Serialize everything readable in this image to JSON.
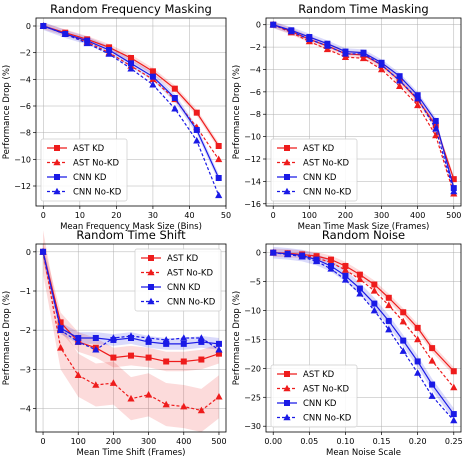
{
  "chart_data": [
    {
      "type": "line",
      "title": "Random Frequency Masking",
      "xlabel": "Mean Frequency Mask Size (Bins)",
      "ylabel": "Performance Drop (%)",
      "xlim": [
        -2,
        50
      ],
      "ylim": [
        -13.5,
        0.6
      ],
      "xticks": [
        0,
        10,
        20,
        30,
        40,
        50
      ],
      "yticks": [
        0,
        -2,
        -4,
        -6,
        -8,
        -10,
        -12
      ],
      "grid": true,
      "legend_position": "lower-left",
      "series": [
        {
          "name": "AST KD",
          "color": "#ee1c1c",
          "marker": "square",
          "dashed": false,
          "x": [
            0,
            6,
            12,
            18,
            24,
            30,
            36,
            42,
            48
          ],
          "y": [
            0,
            -0.5,
            -1.0,
            -1.6,
            -2.4,
            -3.4,
            -4.7,
            -6.5,
            -9.0
          ],
          "band": 0.25
        },
        {
          "name": "AST No-KD",
          "color": "#ee1c1c",
          "marker": "triangle",
          "dashed": true,
          "x": [
            0,
            6,
            12,
            18,
            24,
            30,
            36,
            42,
            48
          ],
          "y": [
            0,
            -0.6,
            -1.2,
            -2.0,
            -3.0,
            -4.0,
            -5.5,
            -7.6,
            -10.0
          ],
          "band": 0
        },
        {
          "name": "CNN KD",
          "color": "#1a1ae6",
          "marker": "square",
          "dashed": false,
          "x": [
            0,
            6,
            12,
            18,
            24,
            30,
            36,
            42,
            48
          ],
          "y": [
            0,
            -0.6,
            -1.1,
            -1.8,
            -2.8,
            -3.8,
            -5.4,
            -7.8,
            -11.4
          ],
          "band": 0.3
        },
        {
          "name": "CNN No-KD",
          "color": "#1a1ae6",
          "marker": "triangle",
          "dashed": true,
          "x": [
            0,
            6,
            12,
            18,
            24,
            30,
            36,
            42,
            48
          ],
          "y": [
            0,
            -0.6,
            -1.3,
            -2.1,
            -3.2,
            -4.4,
            -6.2,
            -8.6,
            -12.7
          ],
          "band": 0
        }
      ]
    },
    {
      "type": "line",
      "title": "Random Time Masking",
      "xlabel": "Mean Time Mask Size (Frames)",
      "ylabel": "Performance Drop (%)",
      "xlim": [
        -20,
        520
      ],
      "ylim": [
        -16.2,
        0.6
      ],
      "xticks": [
        0,
        100,
        200,
        300,
        400,
        500
      ],
      "yticks": [
        0,
        -2,
        -4,
        -6,
        -8,
        -10,
        -12,
        -14,
        -16
      ],
      "grid": true,
      "legend_position": "lower-left",
      "series": [
        {
          "name": "AST KD",
          "color": "#ee1c1c",
          "marker": "square",
          "dashed": false,
          "x": [
            0,
            50,
            100,
            150,
            200,
            250,
            300,
            350,
            400,
            450,
            500
          ],
          "y": [
            0,
            -0.6,
            -1.3,
            -1.9,
            -2.6,
            -2.7,
            -3.6,
            -5.0,
            -6.7,
            -9.0,
            -13.8
          ],
          "band": 0.3
        },
        {
          "name": "AST No-KD",
          "color": "#ee1c1c",
          "marker": "triangle",
          "dashed": true,
          "x": [
            0,
            50,
            100,
            150,
            200,
            250,
            300,
            350,
            400,
            450,
            500
          ],
          "y": [
            0,
            -0.7,
            -1.5,
            -2.2,
            -2.9,
            -3.0,
            -4.0,
            -5.5,
            -7.2,
            -9.9,
            -15.1
          ],
          "band": 0
        },
        {
          "name": "CNN KD",
          "color": "#1a1ae6",
          "marker": "square",
          "dashed": false,
          "x": [
            0,
            50,
            100,
            150,
            200,
            250,
            300,
            350,
            400,
            450,
            500
          ],
          "y": [
            0,
            -0.5,
            -1.1,
            -1.7,
            -2.4,
            -2.5,
            -3.4,
            -4.6,
            -6.3,
            -8.6,
            -14.6
          ],
          "band": 0.3
        },
        {
          "name": "CNN No-KD",
          "color": "#1a1ae6",
          "marker": "triangle",
          "dashed": true,
          "x": [
            0,
            50,
            100,
            150,
            200,
            250,
            300,
            350,
            400,
            450,
            500
          ],
          "y": [
            0,
            -0.6,
            -1.3,
            -1.9,
            -2.6,
            -2.6,
            -3.6,
            -5.0,
            -6.6,
            -9.3,
            -14.9
          ],
          "band": 0
        }
      ]
    },
    {
      "type": "line",
      "title": "Random Time Shift",
      "xlabel": "Mean Time Shift (Frames)",
      "ylabel": "Performance Drop (%)",
      "xlim": [
        -20,
        520
      ],
      "ylim": [
        -4.6,
        0.2
      ],
      "xticks": [
        0,
        100,
        200,
        300,
        400,
        500
      ],
      "yticks": [
        0,
        -1,
        -2,
        -3,
        -4
      ],
      "grid": true,
      "legend_position": "top-right",
      "series": [
        {
          "name": "AST KD",
          "color": "#ee1c1c",
          "marker": "square",
          "dashed": false,
          "x": [
            0,
            50,
            100,
            150,
            200,
            250,
            300,
            350,
            400,
            450,
            500
          ],
          "y": [
            0,
            -1.8,
            -2.3,
            -2.45,
            -2.7,
            -2.65,
            -2.7,
            -2.8,
            -2.8,
            -2.75,
            -2.6
          ],
          "band": 0.25
        },
        {
          "name": "AST No-KD",
          "color": "#ee1c1c",
          "marker": "triangle",
          "dashed": true,
          "x": [
            0,
            50,
            100,
            150,
            200,
            250,
            300,
            350,
            400,
            450,
            500
          ],
          "y": [
            0,
            -2.45,
            -3.15,
            -3.4,
            -3.35,
            -3.75,
            -3.65,
            -3.9,
            -3.95,
            -4.05,
            -3.7
          ],
          "band": 0.55
        },
        {
          "name": "CNN KD",
          "color": "#1a1ae6",
          "marker": "square",
          "dashed": false,
          "x": [
            0,
            50,
            100,
            150,
            200,
            250,
            300,
            350,
            400,
            450,
            500
          ],
          "y": [
            0,
            -1.95,
            -2.2,
            -2.2,
            -2.25,
            -2.2,
            -2.3,
            -2.35,
            -2.35,
            -2.3,
            -2.35
          ],
          "band": 0.15
        },
        {
          "name": "CNN No-KD",
          "color": "#1a1ae6",
          "marker": "triangle",
          "dashed": true,
          "x": [
            0,
            50,
            100,
            150,
            200,
            250,
            300,
            350,
            400,
            450,
            500
          ],
          "y": [
            0,
            -2.0,
            -2.3,
            -2.5,
            -2.2,
            -2.15,
            -2.2,
            -2.25,
            -2.2,
            -2.2,
            -2.5
          ],
          "band": 0
        }
      ]
    },
    {
      "type": "line",
      "title": "Random Noise",
      "xlabel": "Mean Noise Scale",
      "ylabel": "Performance Drop (%)",
      "xlim": [
        -0.01,
        0.26
      ],
      "ylim": [
        -31,
        1.5
      ],
      "xticks": [
        0,
        0.05,
        0.1,
        0.15,
        0.2,
        0.25
      ],
      "xtick_labels": [
        "0.00",
        "0.05",
        "0.10",
        "0.15",
        "0.20",
        "0.25"
      ],
      "yticks": [
        0,
        -5,
        -10,
        -15,
        -20,
        -25,
        -30
      ],
      "grid": true,
      "legend_position": "lower-left",
      "series": [
        {
          "name": "AST KD",
          "color": "#ee1c1c",
          "marker": "square",
          "dashed": false,
          "x": [
            0,
            0.02,
            0.04,
            0.06,
            0.08,
            0.1,
            0.12,
            0.14,
            0.16,
            0.18,
            0.2,
            0.22,
            0.25
          ],
          "y": [
            0,
            -0.1,
            -0.3,
            -0.6,
            -1.2,
            -2.3,
            -3.8,
            -5.5,
            -7.8,
            -10.3,
            -13.0,
            -16.5,
            -20.5
          ],
          "band": 0.7
        },
        {
          "name": "AST No-KD",
          "color": "#ee1c1c",
          "marker": "triangle",
          "dashed": true,
          "x": [
            0,
            0.02,
            0.04,
            0.06,
            0.08,
            0.1,
            0.12,
            0.14,
            0.16,
            0.18,
            0.2,
            0.22,
            0.25
          ],
          "y": [
            0,
            -0.2,
            -0.4,
            -0.9,
            -1.7,
            -3.0,
            -4.6,
            -6.6,
            -9.1,
            -11.9,
            -15.0,
            -18.7,
            -23.3
          ],
          "band": 0
        },
        {
          "name": "CNN KD",
          "color": "#1a1ae6",
          "marker": "square",
          "dashed": false,
          "x": [
            0,
            0.02,
            0.04,
            0.06,
            0.08,
            0.1,
            0.12,
            0.14,
            0.16,
            0.18,
            0.2,
            0.22,
            0.25
          ],
          "y": [
            0,
            -0.2,
            -0.5,
            -1.2,
            -2.3,
            -4.0,
            -6.2,
            -8.8,
            -11.8,
            -15.2,
            -18.8,
            -22.8,
            -27.9
          ],
          "band": 1.0
        },
        {
          "name": "CNN No-KD",
          "color": "#1a1ae6",
          "marker": "triangle",
          "dashed": true,
          "x": [
            0,
            0.02,
            0.04,
            0.06,
            0.08,
            0.1,
            0.12,
            0.14,
            0.16,
            0.18,
            0.2,
            0.22,
            0.25
          ],
          "y": [
            0,
            -0.3,
            -0.7,
            -1.5,
            -2.8,
            -4.7,
            -7.1,
            -10.0,
            -13.3,
            -17.0,
            -20.8,
            -24.8,
            -29.0
          ],
          "band": 0
        }
      ]
    }
  ]
}
